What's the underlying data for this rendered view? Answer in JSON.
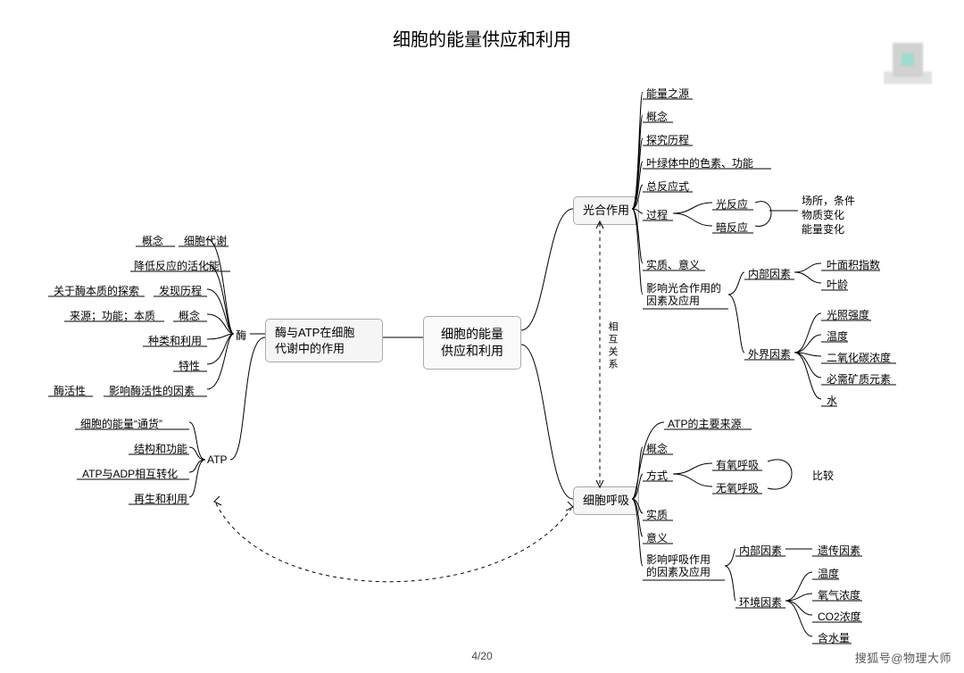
{
  "title": "细胞的能量供应和利用",
  "page": "4/20",
  "watermark": "搜狐号@物理大师",
  "center": "细胞的能量\n供应和利用",
  "left_main": "酶与ATP在细胞\n代谢中的作用",
  "right_top": "光合作用",
  "right_bot": "细胞呼吸",
  "enzyme_hub": "酶",
  "atp_hub": "ATP",
  "rel": "相互关系",
  "compare": "比较",
  "enzyme": {
    "a": "概念",
    "a2": "细胞代谢",
    "b": "降低反应的活化能",
    "c": "发现历程",
    "c2": "关于酶本质的探索",
    "d": "概念",
    "d2": "来源；功能；本质",
    "e": "种类和利用",
    "f": "特性",
    "g": "影响酶活性的因素",
    "g2": "酶活性"
  },
  "atp": {
    "a": "细胞的能量“通货”",
    "b": "结构和功能",
    "c": "ATP与ADP相互转化",
    "d": "再生和利用"
  },
  "photo": {
    "a": "能量之源",
    "b": "概念",
    "c": "探究历程",
    "d": "叶绿体中的色素、功能",
    "e": "总反应式",
    "f": "过程",
    "f1": "光反应",
    "f2": "暗反应",
    "fnote1": "场所，条件",
    "fnote2": "物质变化",
    "fnote3": "能量变化",
    "g": "实质、意义",
    "h": "影响光合作用的\n因素及应用",
    "h_in": "内部因素",
    "h_in1": "叶面积指数",
    "h_in2": "叶龄",
    "h_out": "外界因素",
    "ho1": "光照强度",
    "ho2": "温度",
    "ho3": "二氧化碳浓度",
    "ho4": "必需矿质元素",
    "ho5": "水"
  },
  "resp": {
    "a": "ATP的主要来源",
    "b": "概念",
    "c": "方式",
    "c1": "有氧呼吸",
    "c2": "无氧呼吸",
    "d": "实质",
    "e": "意义",
    "f": "影响呼吸作用\n的因素及应用",
    "f_in": "内部因素",
    "f_in1": "遗传因素",
    "f_out": "环境因素",
    "fo1": "温度",
    "fo2": "氧气浓度",
    "fo3": "CO2浓度",
    "fo4": "含水量"
  },
  "style": {
    "stroke": "#000000",
    "dash": "4 4",
    "bg": "#ffffff"
  }
}
